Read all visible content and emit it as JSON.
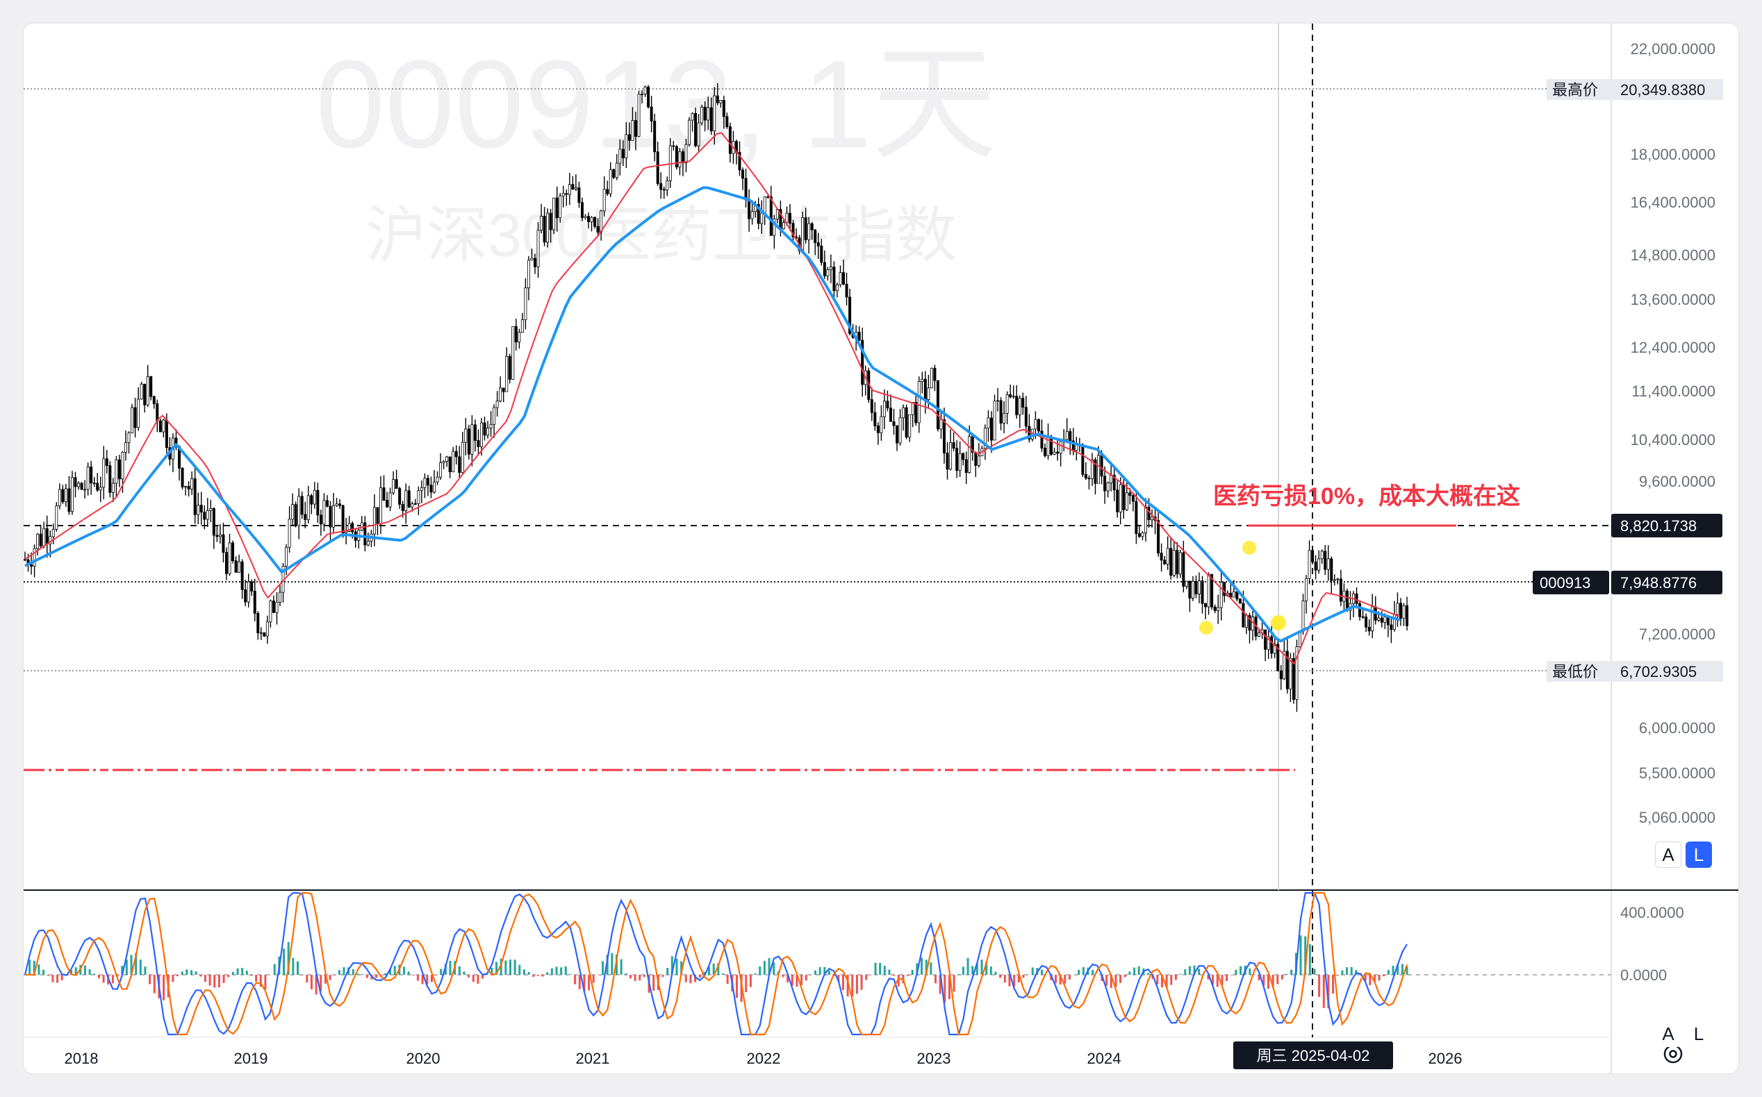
{
  "watermark": {
    "symbol": "000913, 1天",
    "name": "沪深300医药卫生指数"
  },
  "annotation": {
    "text": "医药亏损10%，成本大概在这",
    "color": "#f23645"
  },
  "colors": {
    "candle": "#000000",
    "ma_fast": "#f23645",
    "ma_slow": "#2196f3",
    "macd_pos": "#26a69a",
    "macd_neg": "#ef5350",
    "dif": "#2962ff",
    "dea": "#ff6d00"
  },
  "price_axis": {
    "scale": "log",
    "ticks": [
      "22,000.0000",
      "18,000.0000",
      "16,400.0000",
      "14,800.0000",
      "13,600.0000",
      "12,400.0000",
      "11,400.0000",
      "10,400.0000",
      "9,600.0000",
      "7,200.0000",
      "6,000.0000",
      "5,500.0000",
      "5,060.0000"
    ]
  },
  "price_labels": {
    "high_label": "最高价",
    "high_value": "20,349.8380",
    "cost_value": "8,820.1738",
    "symbol_tag": "000913",
    "last_value": "7,948.8776",
    "low_label": "最低价",
    "low_value": "6,702.9305"
  },
  "scale_buttons": {
    "a": "A",
    "l": "L"
  },
  "macd_axis": {
    "ticks": [
      "400.0000",
      "0.0000"
    ]
  },
  "time_axis": {
    "years": [
      "2018",
      "2019",
      "2020",
      "2021",
      "2022",
      "2023",
      "2024",
      "2026"
    ],
    "crosshair_label": "周三 2025-04-02"
  },
  "settings_icon": "gear-icon",
  "chart_data": {
    "type": "candlestick",
    "title": "000913, 1天",
    "subtitle": "沪深300医药卫生指数",
    "y_scale": "log",
    "ylim": [
      4800,
      22800
    ],
    "x_range": [
      "2017-09",
      "2026-06"
    ],
    "high": 20349.838,
    "low": 6702.9305,
    "last": 7948.8776,
    "cost_line": 8820.1738,
    "crosshair_date": "2025-04-02",
    "series": [
      {
        "name": "close",
        "x": [
          "2017-09",
          "2017-12",
          "2018-03",
          "2018-05",
          "2018-06",
          "2018-08",
          "2018-10",
          "2019-01",
          "2019-03",
          "2019-05",
          "2019-07",
          "2019-09",
          "2019-12",
          "2020-03",
          "2020-05",
          "2020-07",
          "2020-09",
          "2020-11",
          "2021-01",
          "2021-02",
          "2021-03",
          "2021-05",
          "2021-07",
          "2021-09",
          "2021-12",
          "2022-03",
          "2022-05",
          "2022-07",
          "2022-09",
          "2022-10",
          "2022-12",
          "2023-02",
          "2023-04",
          "2023-06",
          "2023-08",
          "2023-10",
          "2023-12",
          "2024-02",
          "2024-04",
          "2024-06",
          "2024-08",
          "2024-09",
          "2024-10",
          "2024-12",
          "2025-02",
          "2025-04"
        ],
        "values": [
          8700,
          9800,
          10200,
          11900,
          11200,
          9800,
          8900,
          7600,
          9600,
          9500,
          9100,
          9700,
          10000,
          10900,
          12300,
          15500,
          16800,
          16100,
          18600,
          19900,
          17300,
          18700,
          19600,
          16400,
          15800,
          14400,
          11400,
          11000,
          12000,
          10400,
          10600,
          11600,
          10900,
          10700,
          10200,
          9600,
          9000,
          8400,
          8100,
          7800,
          7300,
          7000,
          8900,
          8300,
          7700,
          7950
        ]
      },
      {
        "name": "ma_fast",
        "x": [
          "2017-09",
          "2018-03",
          "2018-06",
          "2018-09",
          "2019-01",
          "2019-05",
          "2019-09",
          "2020-01",
          "2020-05",
          "2020-08",
          "2020-11",
          "2021-02",
          "2021-05",
          "2021-07",
          "2021-10",
          "2022-01",
          "2022-05",
          "2022-09",
          "2022-12",
          "2023-03",
          "2023-07",
          "2023-10",
          "2024-01",
          "2024-04",
          "2024-07",
          "2024-09",
          "2024-11",
          "2025-01",
          "2025-04"
        ],
        "values": [
          8700,
          9700,
          11300,
          10300,
          8100,
          9100,
          9300,
          9800,
          11200,
          14200,
          15600,
          17600,
          17800,
          18800,
          16900,
          14800,
          11800,
          11400,
          10500,
          11000,
          10500,
          9900,
          9000,
          8300,
          7600,
          7200,
          8200,
          8100,
          7850
        ]
      },
      {
        "name": "ma_slow",
        "x": [
          "2017-09",
          "2018-03",
          "2018-07",
          "2018-10",
          "2019-02",
          "2019-06",
          "2019-10",
          "2020-02",
          "2020-06",
          "2020-09",
          "2020-12",
          "2021-03",
          "2021-06",
          "2021-09",
          "2022-01",
          "2022-05",
          "2022-09",
          "2023-01",
          "2023-04",
          "2023-08",
          "2023-11",
          "2024-02",
          "2024-05",
          "2024-08",
          "2024-10",
          "2025-01",
          "2025-04"
        ],
        "values": [
          8600,
          9300,
          10700,
          9700,
          8500,
          9100,
          9000,
          9800,
          11200,
          13900,
          15300,
          16300,
          17000,
          16600,
          14900,
          12300,
          11500,
          10600,
          10900,
          10600,
          9700,
          9100,
          8300,
          7500,
          7700,
          8000,
          7800
        ]
      }
    ]
  }
}
